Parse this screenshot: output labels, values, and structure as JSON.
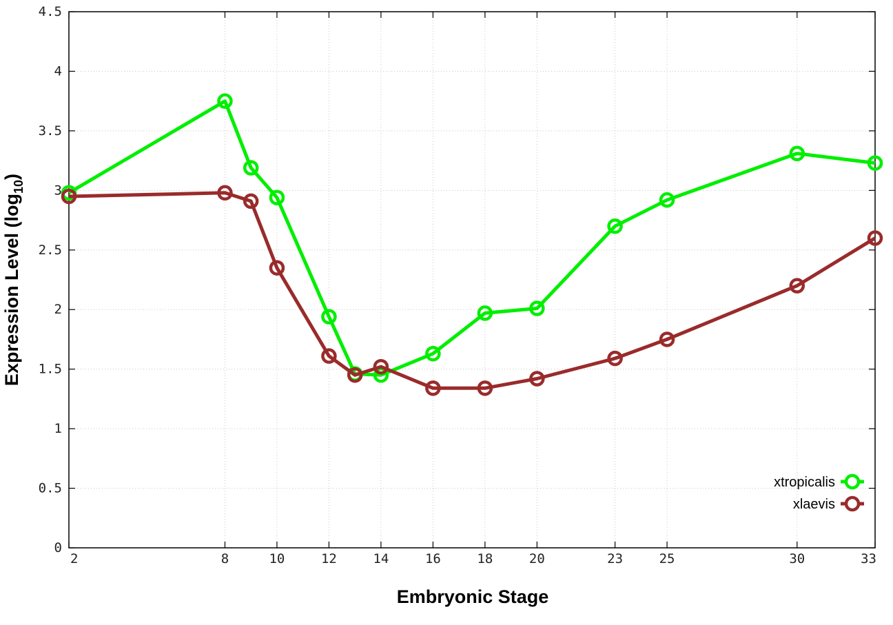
{
  "chart_data": {
    "type": "line",
    "xlabel": "Embryonic Stage",
    "ylabel_main": "Expression Level (log",
    "ylabel_sub": "10",
    "ylabel_close": ")",
    "xlim": [
      2,
      33
    ],
    "ylim": [
      0,
      4.5
    ],
    "x_ticks": [
      2,
      8,
      10,
      12,
      14,
      16,
      18,
      20,
      23,
      25,
      30,
      33
    ],
    "y_ticks": [
      0,
      0.5,
      1,
      1.5,
      2,
      2.5,
      3,
      3.5,
      4,
      4.5
    ],
    "y_tick_labels": [
      "0",
      "0.5",
      "1",
      "1.5",
      "2",
      "2.5",
      "3",
      "3.5",
      "4",
      "4.5"
    ],
    "grid": true,
    "legend_position": "bottom-right",
    "series": [
      {
        "name": "xtropicalis",
        "color": "#00ee00",
        "x": [
          2,
          8,
          9,
          10,
          12,
          13,
          14,
          16,
          18,
          20,
          23,
          25,
          30,
          33
        ],
        "y": [
          2.98,
          3.75,
          3.19,
          2.94,
          1.94,
          1.46,
          1.45,
          1.63,
          1.97,
          2.01,
          2.7,
          2.92,
          3.31,
          3.23
        ]
      },
      {
        "name": "xlaevis",
        "color": "#9a2b2b",
        "x": [
          2,
          8,
          9,
          10,
          12,
          13,
          14,
          16,
          18,
          20,
          23,
          25,
          30,
          33
        ],
        "y": [
          2.95,
          2.98,
          2.91,
          2.35,
          1.61,
          1.45,
          1.52,
          1.34,
          1.34,
          1.42,
          1.59,
          1.75,
          2.2,
          2.6
        ]
      }
    ]
  }
}
